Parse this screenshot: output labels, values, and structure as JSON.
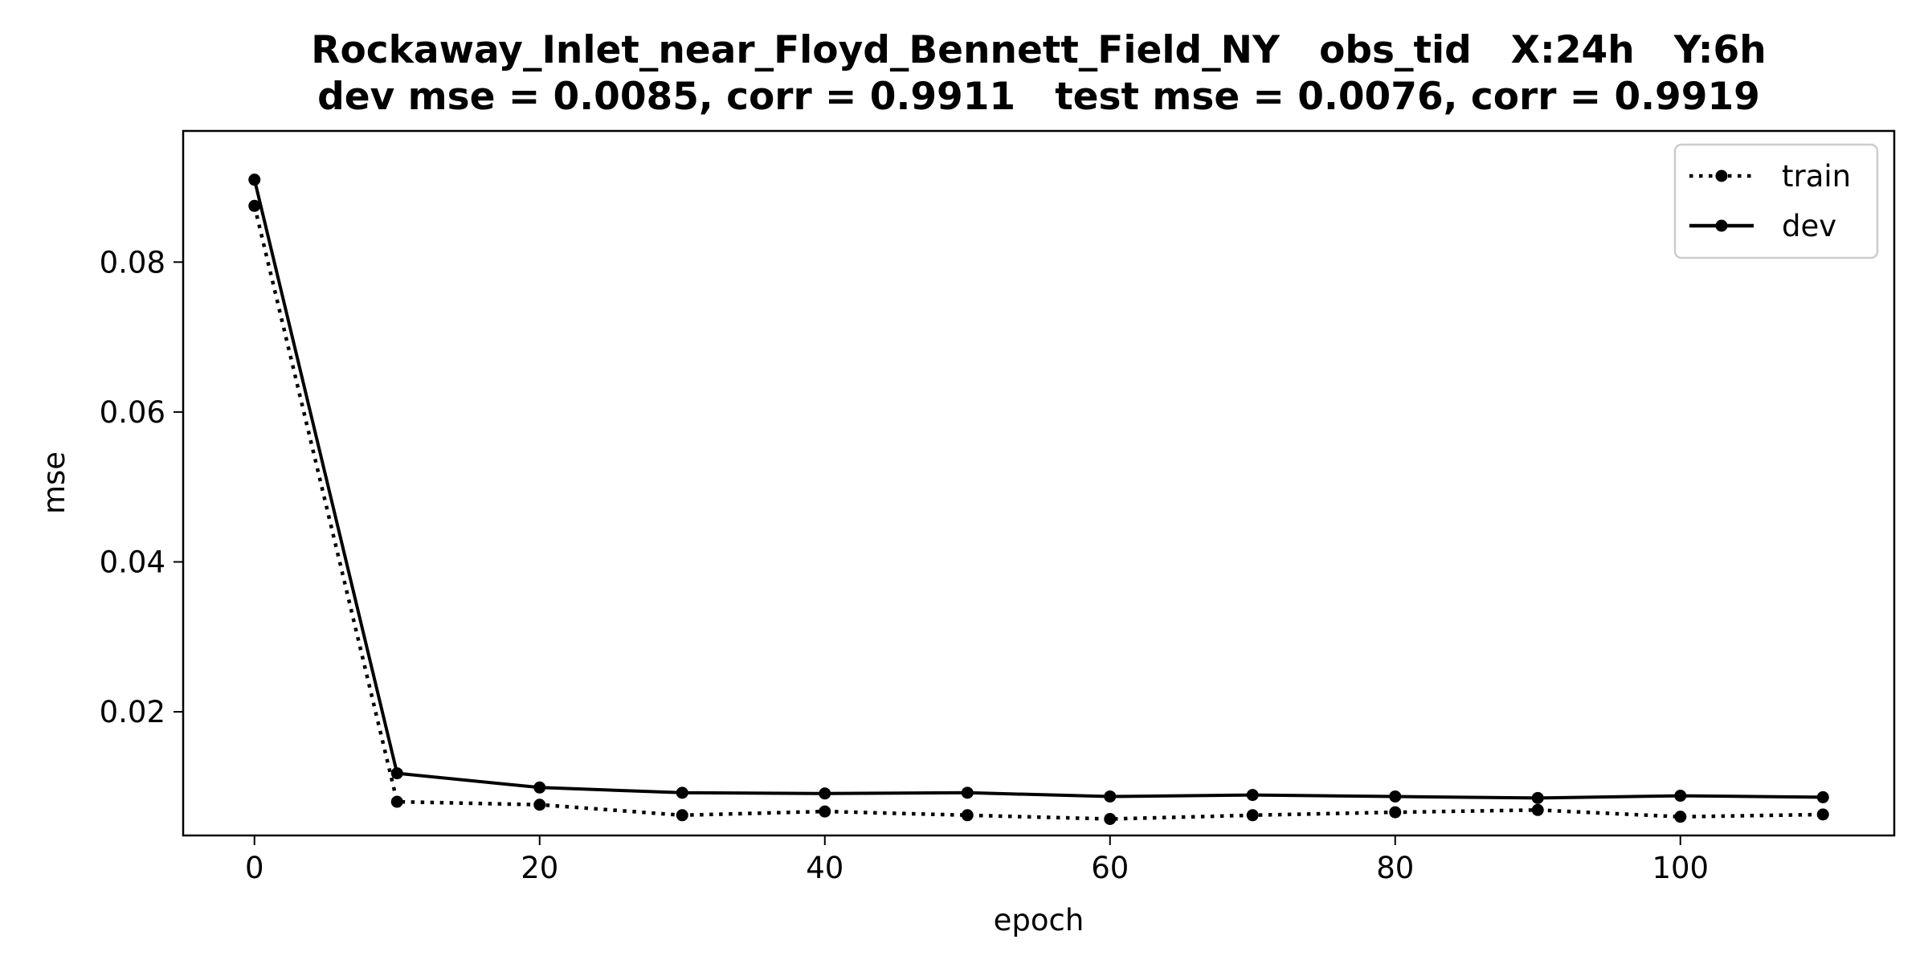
{
  "chart_data": {
    "type": "line",
    "title": "Rockaway_Inlet_near_Floyd_Bennett_Field_NY   obs_tid   X:24h   Y:6h",
    "subtitle": "dev mse = 0.0085, corr = 0.9911   test mse = 0.0076, corr = 0.9919",
    "xlabel": "epoch",
    "ylabel": "mse",
    "xlim": [
      -5,
      115
    ],
    "ylim": [
      0.0035,
      0.0975
    ],
    "xticks": [
      0,
      20,
      40,
      60,
      80,
      100
    ],
    "xtick_labels": [
      "0",
      "20",
      "40",
      "60",
      "80",
      "100"
    ],
    "yticks": [
      0.02,
      0.04,
      0.06,
      0.08
    ],
    "ytick_labels": [
      "0.02",
      "0.04",
      "0.06",
      "0.08"
    ],
    "grid": false,
    "legend_position": "top-right",
    "x": [
      0,
      10,
      20,
      30,
      40,
      50,
      60,
      70,
      80,
      90,
      100,
      110
    ],
    "series": [
      {
        "name": "train",
        "style": "dotted",
        "color": "#000000",
        "values": [
          0.0875,
          0.008,
          0.0076,
          0.0062,
          0.0067,
          0.0062,
          0.0057,
          0.0062,
          0.0066,
          0.0069,
          0.006,
          0.0063
        ]
      },
      {
        "name": "dev",
        "style": "solid",
        "color": "#000000",
        "values": [
          0.091,
          0.0118,
          0.0099,
          0.0092,
          0.0091,
          0.0092,
          0.0087,
          0.0089,
          0.0087,
          0.0085,
          0.0088,
          0.0086
        ]
      }
    ]
  }
}
